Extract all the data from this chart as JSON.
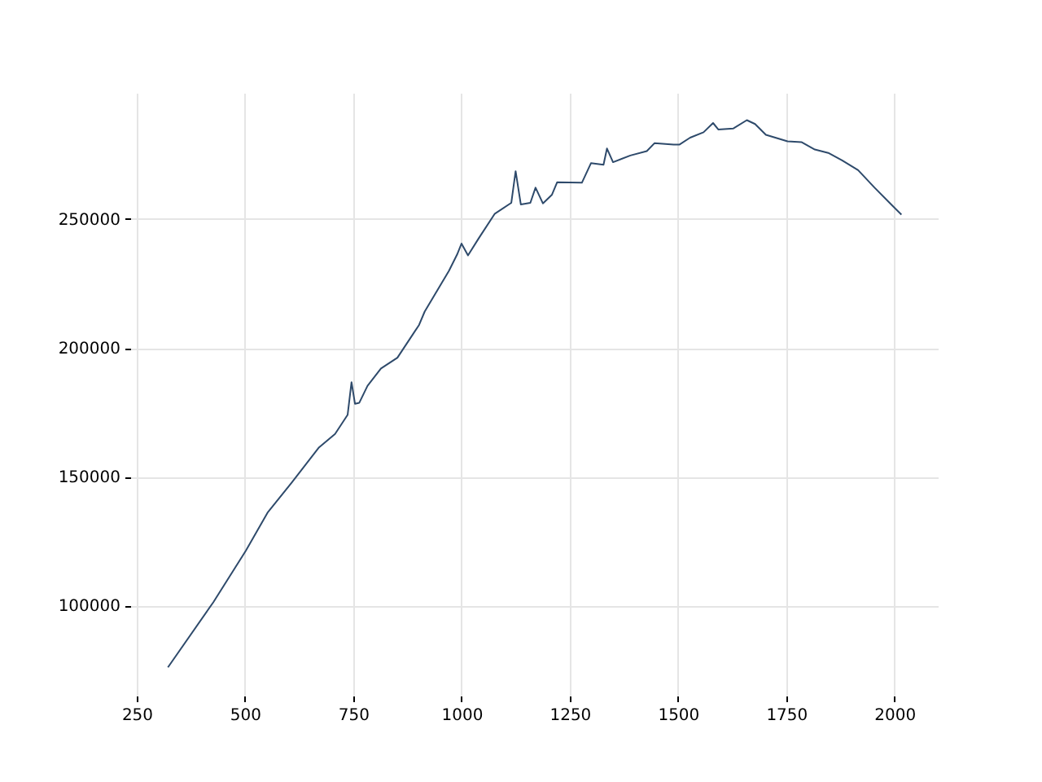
{
  "chart_data": {
    "type": "line",
    "x": [
      322,
      427,
      502,
      552,
      608,
      671,
      708,
      737,
      746,
      754,
      764,
      783,
      814,
      852,
      902,
      915,
      971,
      990,
      1000,
      1015,
      1040,
      1077,
      1115,
      1125,
      1137,
      1159,
      1171,
      1188,
      1209,
      1221,
      1278,
      1299,
      1328,
      1336,
      1350,
      1390,
      1428,
      1446,
      1490,
      1503,
      1528,
      1559,
      1581,
      1593,
      1628,
      1659,
      1678,
      1703,
      1753,
      1785,
      1816,
      1847,
      1879,
      1916,
      1954,
      1991,
      2016
    ],
    "series": [
      {
        "color": "#2e4a6b",
        "values": [
          76000,
          101300,
          121300,
          136000,
          147700,
          161400,
          166600,
          174000,
          186700,
          178300,
          178700,
          185300,
          192000,
          196200,
          208900,
          214100,
          229900,
          236300,
          240500,
          235900,
          242600,
          252100,
          256300,
          268600,
          255700,
          256300,
          262200,
          256100,
          259500,
          264300,
          264100,
          271700,
          271100,
          277400,
          272100,
          274700,
          276400,
          279500,
          278900,
          278900,
          281600,
          283700,
          287300,
          284800,
          285200,
          288400,
          286900,
          282700,
          280200,
          279900,
          277000,
          275700,
          272800,
          269000,
          262200,
          255900,
          251700
        ]
      }
    ],
    "xlim": [
      235,
      2100
    ],
    "ylim": [
      65000,
      299000
    ],
    "xticks": [
      250,
      500,
      750,
      1000,
      1250,
      1500,
      1750,
      2000
    ],
    "yticks": [
      100000,
      150000,
      200000,
      250000
    ],
    "grid": true,
    "marker": "none",
    "line_style": "solid"
  }
}
